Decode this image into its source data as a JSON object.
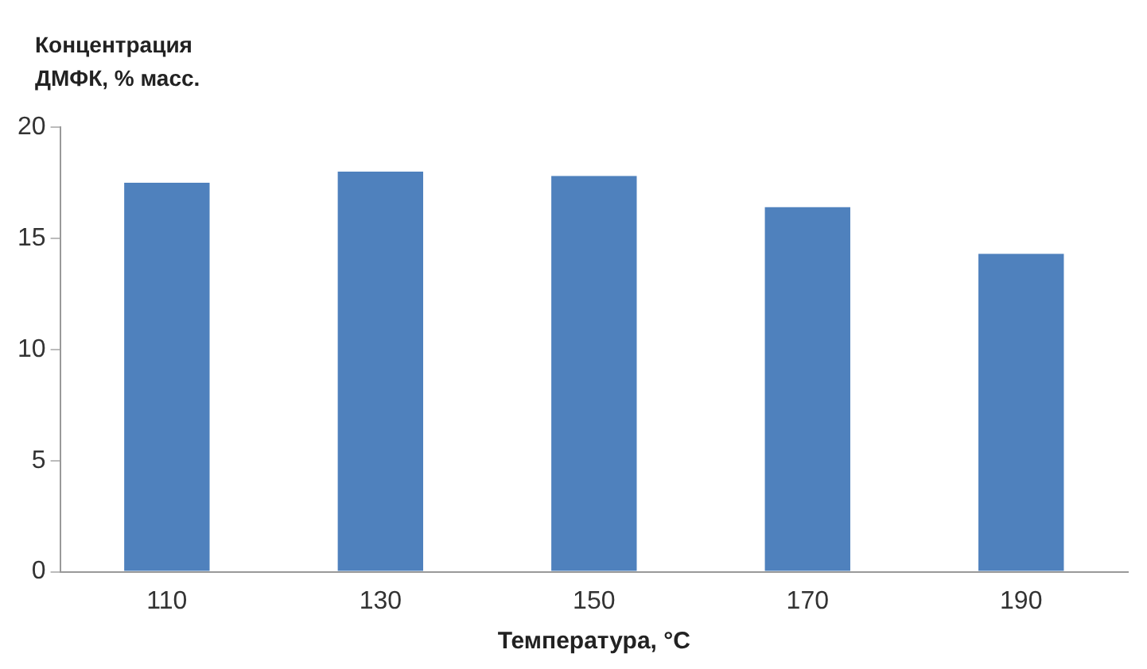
{
  "chart_data": {
    "type": "bar",
    "ylabel": "Концентрация\nДМФК, % масс.",
    "xlabel": "Температура, °C",
    "categories": [
      "110",
      "130",
      "150",
      "170",
      "190"
    ],
    "values": [
      17.5,
      18.0,
      17.8,
      16.4,
      14.3
    ],
    "color": "#4f81bd",
    "ylim": [
      0,
      20
    ],
    "yticks": [
      0,
      5,
      10,
      15,
      20
    ],
    "grid": false,
    "legend": false
  }
}
